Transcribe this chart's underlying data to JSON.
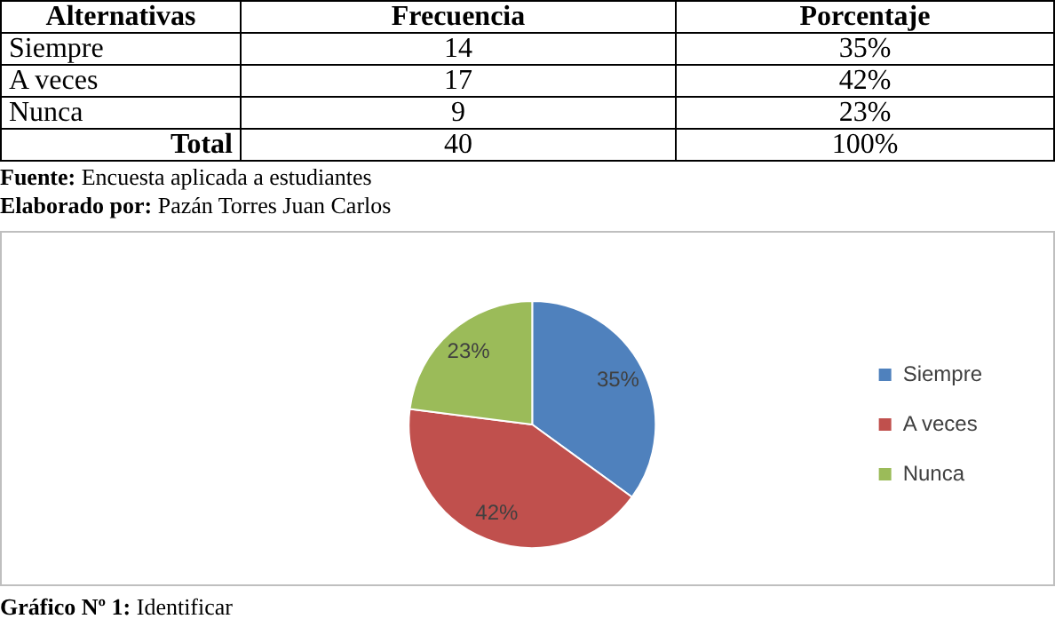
{
  "chart_data": {
    "type": "pie",
    "categories": [
      "Siempre",
      "A veces",
      "Nunca"
    ],
    "values": [
      35,
      42,
      23
    ],
    "value_labels": [
      "35%",
      "42%",
      "23%"
    ],
    "colors": [
      "#4f81bd",
      "#c0504d",
      "#9bbb59"
    ],
    "legend": "right",
    "annotations": [
      "Alternativas",
      "Frecuencia",
      "Porcentaje",
      "14",
      "17",
      "9",
      "Total",
      "40",
      "100%",
      "Fuente: Encuesta aplicada a estudiantes",
      "Elaborado por: Pazán Torres Juan Carlos",
      "Gráfico Nº 1: Identificar"
    ]
  }
}
